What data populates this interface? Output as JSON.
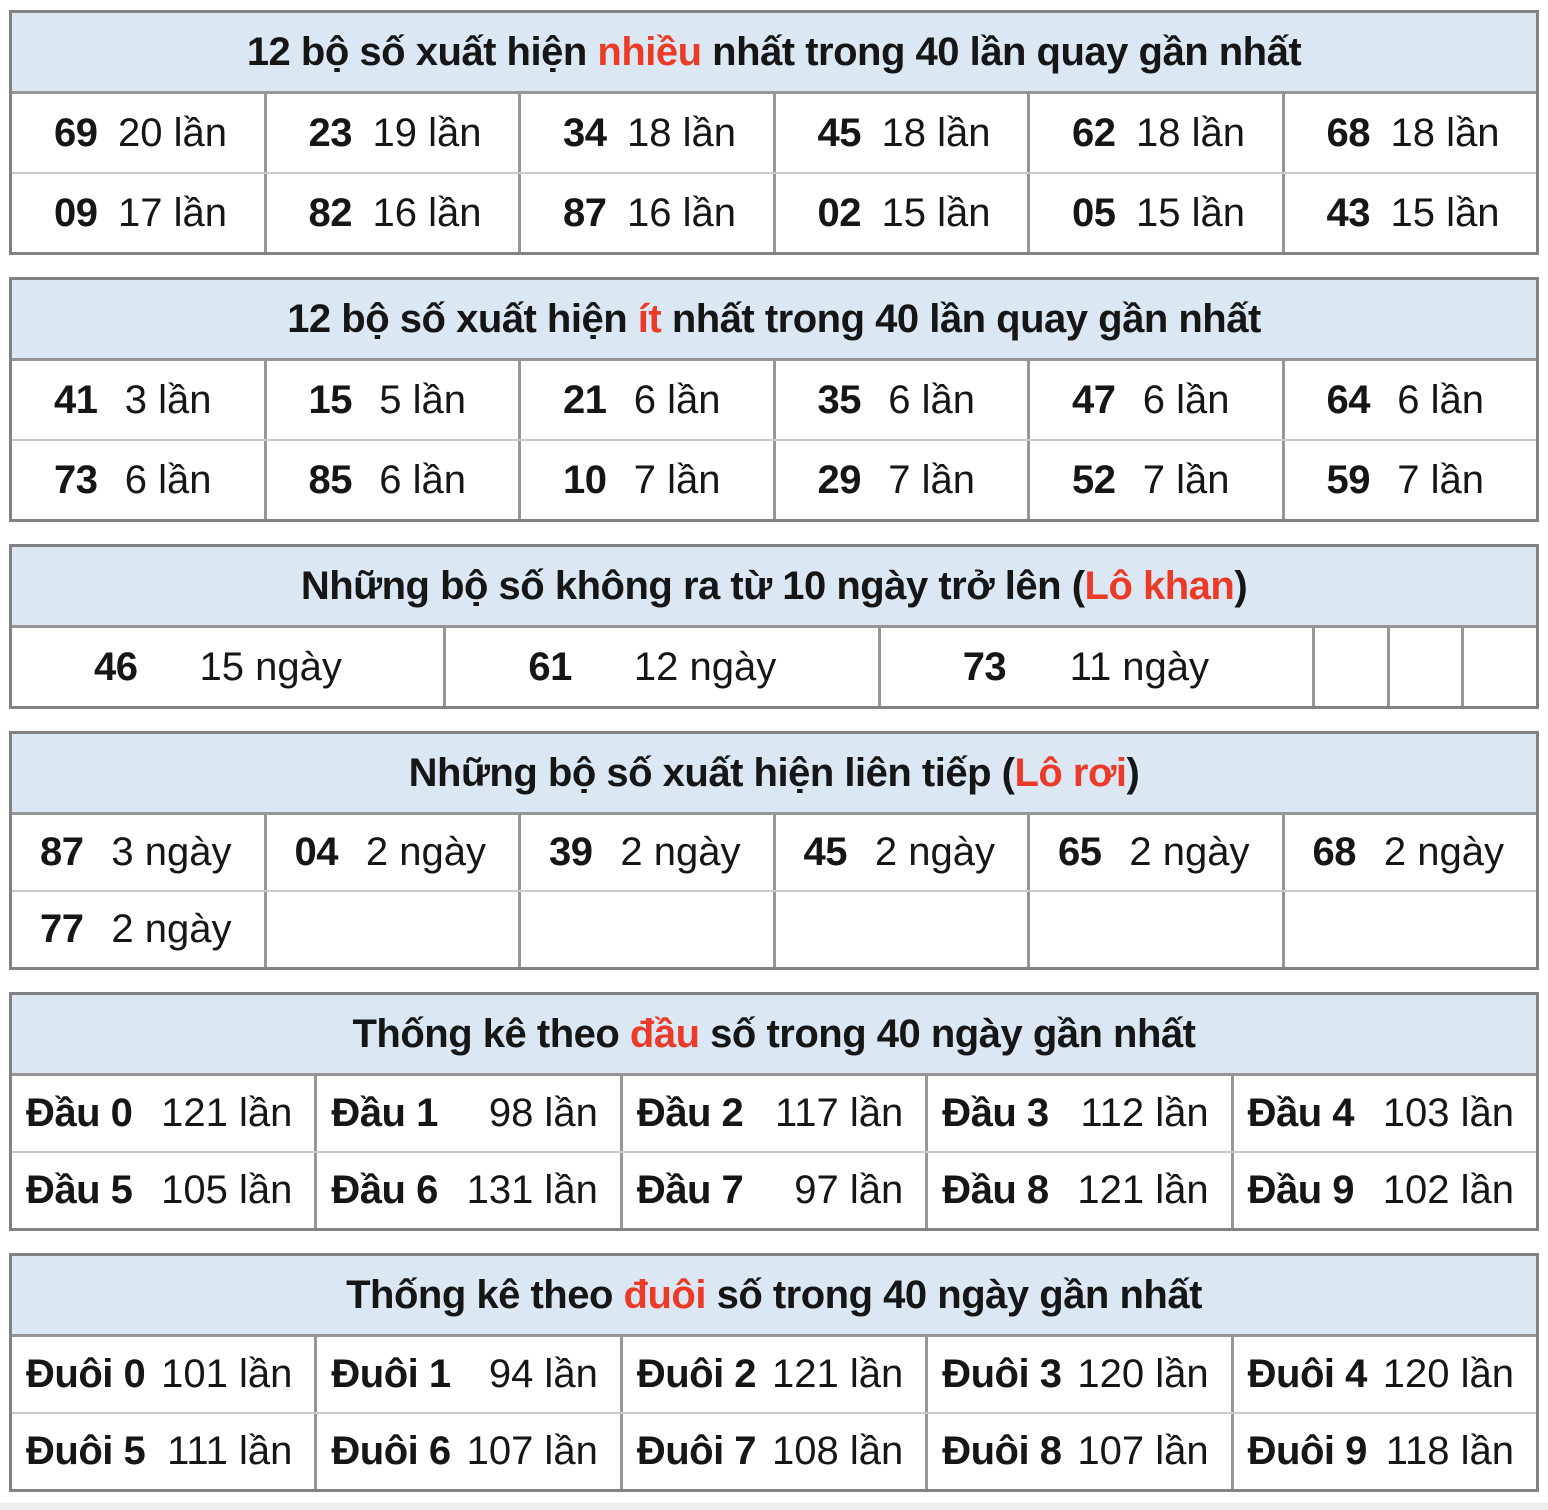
{
  "colors": {
    "header_bg": "#dbe8f4",
    "accent_red": "#ec3a28",
    "border_dark": "#828282",
    "border_light": "#c9c9c9",
    "text": "#161616"
  },
  "t1": {
    "title_pre": "12 bộ số xuất hiện ",
    "title_red": "nhiều",
    "title_post": " nhất trong 40 lần quay gần nhất",
    "r1": [
      {
        "n": "69",
        "c": "20 lần"
      },
      {
        "n": "23",
        "c": "19 lần"
      },
      {
        "n": "34",
        "c": "18 lần"
      },
      {
        "n": "45",
        "c": "18 lần"
      },
      {
        "n": "62",
        "c": "18 lần"
      },
      {
        "n": "68",
        "c": "18 lần"
      }
    ],
    "r2": [
      {
        "n": "09",
        "c": "17 lần"
      },
      {
        "n": "82",
        "c": "16 lần"
      },
      {
        "n": "87",
        "c": "16 lần"
      },
      {
        "n": "02",
        "c": "15 lần"
      },
      {
        "n": "05",
        "c": "15 lần"
      },
      {
        "n": "43",
        "c": "15 lần"
      }
    ]
  },
  "t2": {
    "title_pre": "12 bộ số xuất hiện ",
    "title_red": "ít",
    "title_post": " nhất trong 40 lần quay gần nhất",
    "r1": [
      {
        "n": "41",
        "c": "3 lần"
      },
      {
        "n": "15",
        "c": "5 lần"
      },
      {
        "n": "21",
        "c": "6 lần"
      },
      {
        "n": "35",
        "c": "6 lần"
      },
      {
        "n": "47",
        "c": "6 lần"
      },
      {
        "n": "64",
        "c": "6 lần"
      }
    ],
    "r2": [
      {
        "n": "73",
        "c": "6 lần"
      },
      {
        "n": "85",
        "c": "6 lần"
      },
      {
        "n": "10",
        "c": "7 lần"
      },
      {
        "n": "29",
        "c": "7 lần"
      },
      {
        "n": "52",
        "c": "7 lần"
      },
      {
        "n": "59",
        "c": "7 lần"
      }
    ]
  },
  "t3": {
    "title_pre": "Những bộ số không ra từ 10 ngày trở lên (",
    "title_red": "Lô khan",
    "title_post": ")",
    "cells": [
      {
        "n": "46",
        "c": "15 ngày"
      },
      {
        "n": "61",
        "c": "12 ngày"
      },
      {
        "n": "73",
        "c": "11 ngày"
      }
    ]
  },
  "t4": {
    "title_pre": "Những bộ số xuất hiện liên tiếp (",
    "title_red": "Lô rơi",
    "title_post": ")",
    "r1": [
      {
        "n": "87",
        "c": "3 ngày"
      },
      {
        "n": "04",
        "c": "2 ngày"
      },
      {
        "n": "39",
        "c": "2 ngày"
      },
      {
        "n": "45",
        "c": "2 ngày"
      },
      {
        "n": "65",
        "c": "2 ngày"
      },
      {
        "n": "68",
        "c": "2 ngày"
      }
    ],
    "r2": [
      {
        "n": "77",
        "c": "2 ngày"
      }
    ]
  },
  "t5": {
    "title_pre": "Thống kê theo ",
    "title_red": "đầu",
    "title_post": " số trong 40 ngày gần nhất",
    "r1": [
      {
        "label": "Đầu 0",
        "count": "121 lần"
      },
      {
        "label": "Đầu 1",
        "count": "98 lần"
      },
      {
        "label": "Đầu 2",
        "count": "117 lần"
      },
      {
        "label": "Đầu 3",
        "count": "112 lần"
      },
      {
        "label": "Đầu 4",
        "count": "103 lần"
      }
    ],
    "r2": [
      {
        "label": "Đầu 5",
        "count": "105 lần"
      },
      {
        "label": "Đầu 6",
        "count": "131 lần"
      },
      {
        "label": "Đầu 7",
        "count": "97 lần"
      },
      {
        "label": "Đầu 8",
        "count": "121 lần"
      },
      {
        "label": "Đầu 9",
        "count": "102 lần"
      }
    ]
  },
  "t6": {
    "title_pre": "Thống kê theo ",
    "title_red": "đuôi",
    "title_post": " số trong 40 ngày gần nhất",
    "r1": [
      {
        "label": "Đuôi 0",
        "count": "101 lần"
      },
      {
        "label": "Đuôi 1",
        "count": "94 lần"
      },
      {
        "label": "Đuôi 2",
        "count": "121 lần"
      },
      {
        "label": "Đuôi 3",
        "count": "120 lần"
      },
      {
        "label": "Đuôi 4",
        "count": "120 lần"
      }
    ],
    "r2": [
      {
        "label": "Đuôi 5",
        "count": "111 lần"
      },
      {
        "label": "Đuôi 6",
        "count": "107 lần"
      },
      {
        "label": "Đuôi 7",
        "count": "108 lần"
      },
      {
        "label": "Đuôi 8",
        "count": "107 lần"
      },
      {
        "label": "Đuôi 9",
        "count": "118 lần"
      }
    ]
  }
}
